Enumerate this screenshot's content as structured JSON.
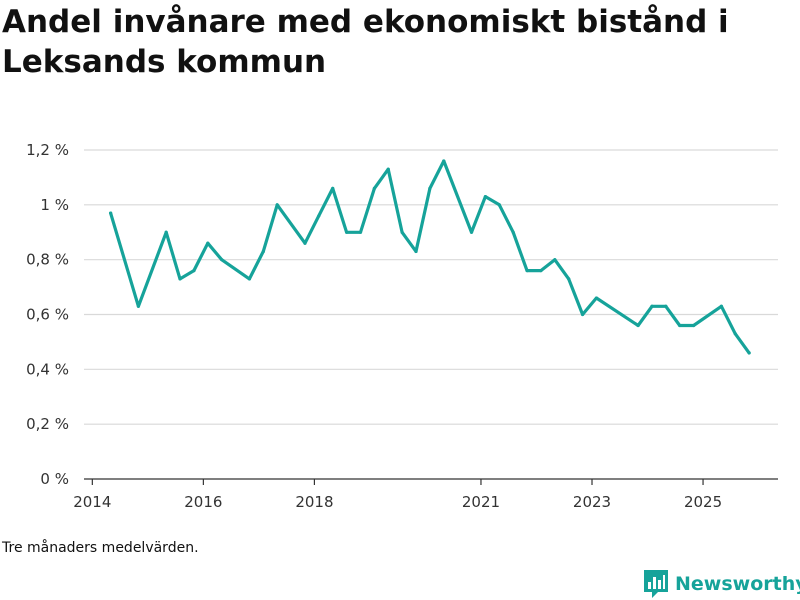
{
  "title": "Andel invånare med ekonomiskt bistånd i Leksands kommun",
  "footnote": "Tre månaders medelvärden.",
  "brand": {
    "name": "Newsworthy",
    "icon": "bar-chart-logo-icon",
    "color": "#16a39a"
  },
  "colors": {
    "line": "#16a39a",
    "grid": "#d9d9d9",
    "axis": "#333333"
  },
  "chart_data": {
    "type": "line",
    "title": "Andel invånare med ekonomiskt bistånd i Leksands kommun",
    "xlabel": "",
    "ylabel": "",
    "ylim": [
      0,
      1.2
    ],
    "yticks": [
      0,
      0.2,
      0.4,
      0.6,
      0.8,
      1.0,
      1.2
    ],
    "ytick_labels": [
      "0 %",
      "0,2 %",
      "0,4 %",
      "0,6 %",
      "0,8 %",
      "1 %",
      "1,2 %"
    ],
    "xlim": [
      2013.85,
      2026.35
    ],
    "xticks": [
      2014,
      2016,
      2018,
      2021,
      2023,
      2025
    ],
    "xtick_labels": [
      "2014",
      "2016",
      "2018",
      "2021",
      "2023",
      "2025"
    ],
    "grid": true,
    "series": [
      {
        "name": "Andel invånare med ekonomiskt bistånd",
        "x": [
          2014.33,
          2014.83,
          2015.33,
          2015.58,
          2015.83,
          2016.08,
          2016.33,
          2016.83,
          2017.08,
          2017.33,
          2017.83,
          2018.08,
          2018.33,
          2018.58,
          2018.83,
          2019.08,
          2019.33,
          2019.58,
          2019.83,
          2020.08,
          2020.33,
          2020.83,
          2021.08,
          2021.33,
          2021.58,
          2021.83,
          2022.08,
          2022.33,
          2022.58,
          2022.83,
          2023.08,
          2023.83,
          2024.08,
          2024.33,
          2024.58,
          2024.83,
          2025.33,
          2025.58,
          2025.83
        ],
        "values": [
          0.97,
          0.63,
          0.9,
          0.73,
          0.76,
          0.86,
          0.8,
          0.73,
          0.83,
          1.0,
          0.86,
          0.96,
          1.06,
          0.9,
          0.9,
          1.06,
          1.13,
          0.9,
          0.83,
          1.06,
          1.16,
          0.9,
          1.03,
          1.0,
          0.9,
          0.76,
          0.76,
          0.8,
          0.73,
          0.6,
          0.66,
          0.56,
          0.63,
          0.63,
          0.56,
          0.56,
          0.63,
          0.53,
          0.46
        ]
      }
    ]
  }
}
